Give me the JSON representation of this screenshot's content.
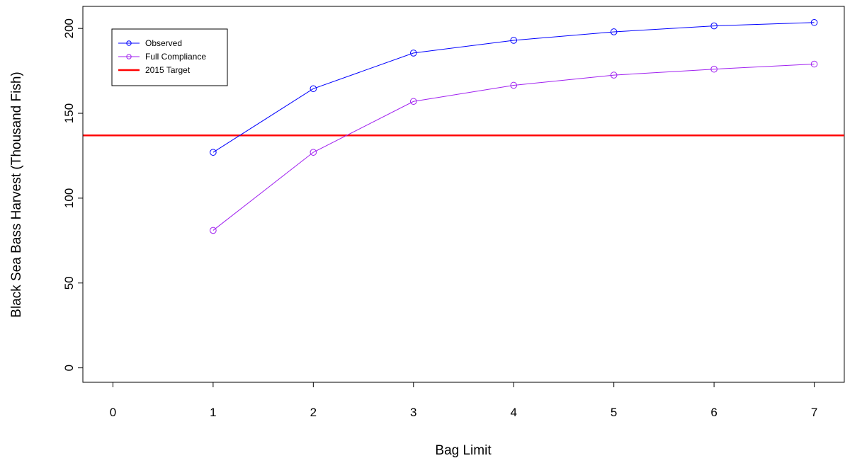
{
  "chart_data": {
    "type": "line",
    "title": "",
    "xlabel": "Bag Limit",
    "ylabel": "Black Sea Bass Harvest (Thousand Fish)",
    "xlim": [
      -0.3,
      7.3
    ],
    "ylim": [
      -8.5,
      213
    ],
    "x_ticks": [
      0,
      1,
      2,
      3,
      4,
      5,
      6,
      7
    ],
    "y_ticks": [
      0,
      50,
      100,
      150,
      200
    ],
    "x": [
      1,
      2,
      3,
      4,
      5,
      6,
      7
    ],
    "series": [
      {
        "name": "Observed",
        "color": "#0000ff",
        "marker": "open-circle",
        "values": [
          127,
          164.5,
          185.5,
          193,
          198,
          201.5,
          203.5
        ]
      },
      {
        "name": "Full Compliance",
        "color": "#a020f0",
        "marker": "open-circle",
        "values": [
          81,
          127,
          157,
          166.5,
          172.5,
          176,
          179
        ]
      }
    ],
    "reference_lines": [
      {
        "name": "2015 Target",
        "color": "#ff0000",
        "orientation": "horizontal",
        "value": 137
      }
    ],
    "legend_position": "top-left",
    "grid": false
  }
}
